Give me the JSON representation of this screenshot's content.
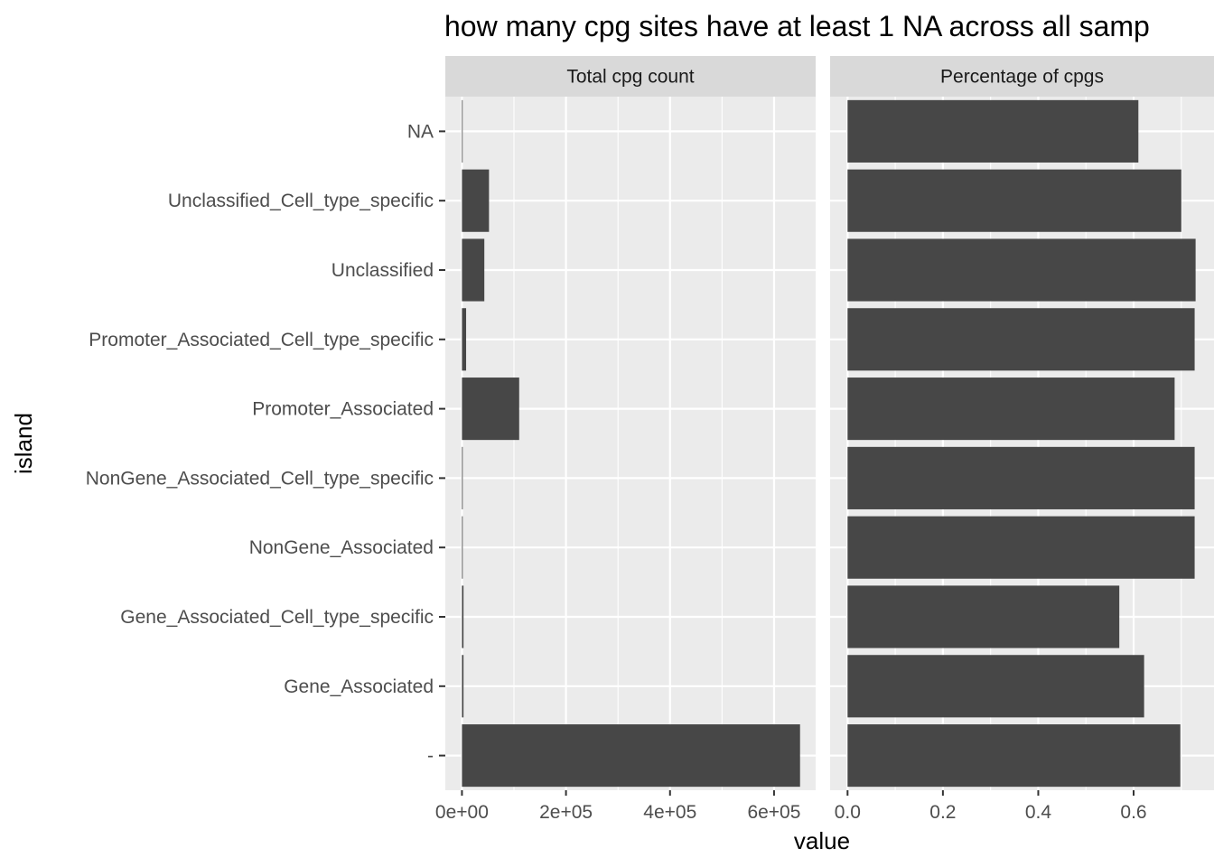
{
  "chart_data": {
    "type": "bar",
    "orientation": "horizontal",
    "title": "how many cpg sites have at least 1 NA across all samp",
    "xlabel": "value",
    "ylabel": "island",
    "categories": [
      "NA",
      "Unclassified_Cell_type_specific",
      "Unclassified",
      "Promoter_Associated_Cell_type_specific",
      "Promoter_Associated",
      "NonGene_Associated_Cell_type_specific",
      "NonGene_Associated",
      "Gene_Associated_Cell_type_specific",
      "Gene_Associated",
      "-"
    ],
    "facets": [
      {
        "label": "Total cpg count",
        "xlim": [
          -32000,
          680000
        ],
        "ticks": [
          0,
          200000,
          400000,
          600000
        ],
        "tick_labels": [
          "0e+00",
          "2e+05",
          "4e+05",
          "6e+05"
        ],
        "values": [
          0,
          52000,
          43000,
          8000,
          110000,
          1500,
          1500,
          3000,
          3000,
          650000
        ]
      },
      {
        "label": "Percentage of cpgs",
        "xlim": [
          -0.0366,
          0.7686
        ],
        "ticks": [
          0,
          0.2,
          0.4,
          0.6
        ],
        "tick_labels": [
          "0.0",
          "0.2",
          "0.4",
          "0.6"
        ],
        "values": [
          0.61,
          0.7,
          0.73,
          0.728,
          0.686,
          0.728,
          0.728,
          0.57,
          0.622,
          0.698
        ]
      }
    ],
    "grid": true,
    "legend": "none",
    "colors": {
      "bar": "#474747",
      "panel": "#ebebeb",
      "strip": "#d9d9d9",
      "grid": "#ffffff",
      "tick_text": "#4d4d4d"
    }
  }
}
